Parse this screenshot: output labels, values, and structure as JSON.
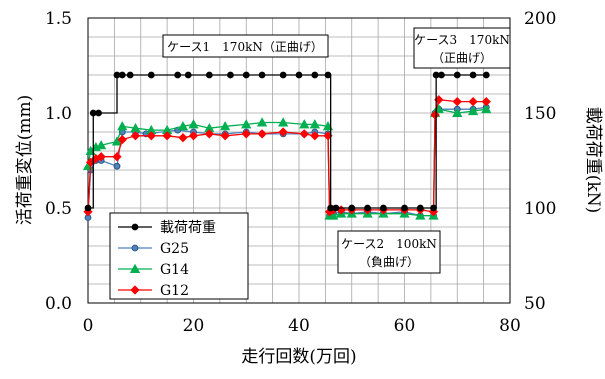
{
  "chart_data": {
    "type": "line",
    "xlabel": "走行回数(万回)",
    "ylabel_left": "活荷重変位(mm)",
    "ylabel_right": "載荷荷重(kN)",
    "xlim": [
      0,
      80
    ],
    "ylim_left": [
      0.0,
      1.5
    ],
    "ylim_right": [
      50,
      200
    ],
    "x_ticks": [
      "0",
      "20",
      "40",
      "60",
      "80"
    ],
    "y_left_ticks": [
      "0.0",
      "0.5",
      "1.0",
      "1.5"
    ],
    "y_right_ticks": [
      "50",
      "100",
      "150",
      "200"
    ],
    "grid": true,
    "legend_position": "lower-left",
    "annotations": [
      {
        "text": "ケース1　170kN（正曲げ）"
      },
      {
        "text": "ケース2　100kN",
        "text2": "（負曲げ）"
      },
      {
        "text": "ケース3　170kN",
        "text2": "（正曲げ）"
      }
    ],
    "series": [
      {
        "name": "載荷荷重",
        "axis": "right",
        "color": "#000000",
        "marker": "circle",
        "step": true,
        "x": [
          0,
          1,
          2,
          5.5,
          6.5,
          8,
          12,
          17,
          19,
          23,
          27,
          30,
          33,
          37,
          40,
          43,
          45.5,
          46,
          47,
          50,
          53,
          56,
          60,
          63,
          65.5,
          66,
          67,
          70,
          73,
          75.5
        ],
        "y": [
          100,
          150,
          150,
          170,
          170,
          170,
          170,
          170,
          170,
          170,
          170,
          170,
          170,
          170,
          170,
          170,
          170,
          100,
          100,
          100,
          100,
          100,
          100,
          100,
          100,
          170,
          170,
          170,
          170,
          170
        ]
      },
      {
        "name": "G25",
        "axis": "left",
        "color": "#4F81BD",
        "marker": "circle",
        "x": [
          0,
          0.5,
          1.5,
          2.5,
          5.5,
          6.5,
          9,
          11,
          17,
          20,
          23,
          26,
          30,
          33,
          37,
          41,
          43,
          45.5,
          45.8,
          46.5,
          48,
          50,
          53,
          56,
          60,
          63,
          65.5,
          65.8,
          66.5,
          70,
          73,
          75.5
        ],
        "y": [
          0.45,
          0.7,
          0.75,
          0.75,
          0.72,
          0.9,
          0.9,
          0.89,
          0.91,
          0.9,
          0.89,
          0.89,
          0.9,
          0.89,
          0.89,
          0.89,
          0.9,
          0.89,
          0.46,
          0.47,
          0.48,
          0.47,
          0.48,
          0.47,
          0.48,
          0.46,
          0.46,
          1.0,
          1.02,
          1.02,
          1.02,
          1.03
        ]
      },
      {
        "name": "G14",
        "axis": "left",
        "color": "#00B050",
        "marker": "triangle",
        "x": [
          0,
          0.5,
          1.5,
          2.5,
          5.5,
          6.5,
          9,
          12,
          15,
          18,
          20,
          23,
          26,
          30,
          33,
          37,
          41,
          43,
          45.5,
          45.8,
          46.5,
          48,
          50,
          53,
          56,
          60,
          63,
          65.5,
          65.8,
          66.5,
          70,
          73,
          75.5
        ],
        "y": [
          0.72,
          0.8,
          0.82,
          0.83,
          0.85,
          0.93,
          0.92,
          0.91,
          0.91,
          0.93,
          0.94,
          0.92,
          0.93,
          0.94,
          0.95,
          0.95,
          0.94,
          0.94,
          0.93,
          0.46,
          0.46,
          0.47,
          0.47,
          0.47,
          0.47,
          0.47,
          0.46,
          0.46,
          1.0,
          1.02,
          1.0,
          1.01,
          1.02
        ]
      },
      {
        "name": "G12",
        "axis": "left",
        "color": "#FF0000",
        "marker": "diamond",
        "x": [
          0,
          0.5,
          1.5,
          2.5,
          5.5,
          6.5,
          9,
          12,
          15,
          18,
          20,
          23,
          26,
          30,
          33,
          37,
          41,
          43,
          45.5,
          45.8,
          46.5,
          48,
          50,
          53,
          56,
          60,
          63,
          65.5,
          65.8,
          66.5,
          70,
          73,
          75.5
        ],
        "y": [
          0.48,
          0.74,
          0.76,
          0.77,
          0.77,
          0.86,
          0.88,
          0.88,
          0.88,
          0.87,
          0.88,
          0.89,
          0.88,
          0.89,
          0.89,
          0.9,
          0.89,
          0.88,
          0.88,
          0.48,
          0.49,
          0.49,
          0.49,
          0.49,
          0.49,
          0.49,
          0.49,
          0.48,
          0.99,
          1.07,
          1.06,
          1.06,
          1.06
        ]
      }
    ]
  }
}
